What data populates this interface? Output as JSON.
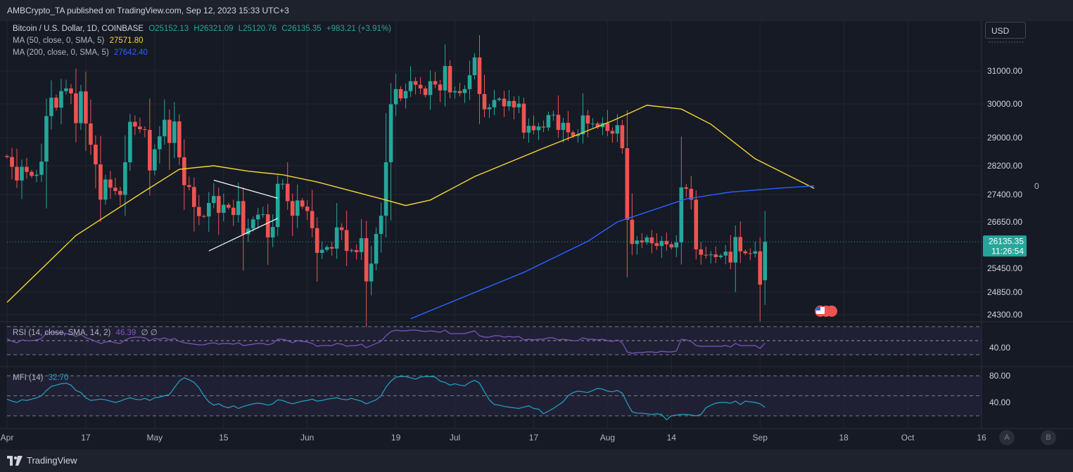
{
  "header": {
    "published": "AMBCrypto_TA published on TradingView.com, Sep 12, 2023 15:33 UTC+3"
  },
  "legend": {
    "symbol": "Bitcoin / U.S. Dollar, 1D, COINBASE",
    "o": "O25152.13",
    "h": "H26321.09",
    "l": "L25120.76",
    "c": "C26135.35",
    "chg": "+983.21 (+3.91%)",
    "ma50_label": "MA (50, close, 0, SMA, 5)",
    "ma50_value": "27571.80",
    "ma200_label": "MA (200, close, 0, SMA, 5)",
    "ma200_value": "27642.40",
    "rsi_label": "RSI (14, close, SMA, 14, 2)",
    "rsi_value": "46.39",
    "rsi_extra": "∅ ∅",
    "mfi_label": "MFI (14)",
    "mfi_value": "32.70"
  },
  "currency_button": "USD",
  "zero_label": "0",
  "last_price": {
    "value": "26135.35",
    "countdown": "11:26:54"
  },
  "footer": {
    "brand": "TradingView",
    "btn_a": "A",
    "btn_b": "B"
  },
  "colors": {
    "bg": "#161a25",
    "up": "#26a69a",
    "down": "#ef5350",
    "ma50": "#f7d531",
    "ma200": "#2962ff",
    "rsi": "#7e57c2",
    "mfi": "#22a3c3"
  },
  "chart_data": [
    {
      "type": "candlestick",
      "title": "Bitcoin / U.S. Dollar, 1D, COINBASE",
      "y_ticks": [
        "24300.00",
        "24850.00",
        "25450.00",
        "26650.00",
        "27400.00",
        "28200.00",
        "29000.00",
        "30000.00",
        "31000.00"
      ],
      "x_ticks": [
        "Apr",
        "17",
        "May",
        "15",
        "Jun",
        "19",
        "Jul",
        "17",
        "Aug",
        "14",
        "Sep",
        "18",
        "Oct",
        "16"
      ],
      "ylim": [
        23800,
        32200
      ],
      "xlim_dates": [
        "2023-04-01",
        "2023-10-16"
      ],
      "candles": {
        "start_date": "2023-04-01",
        "closes": [
          28450,
          28170,
          27790,
          28170,
          28030,
          27920,
          27950,
          28320,
          29640,
          30190,
          29890,
          30390,
          30470,
          30320,
          29430,
          30380,
          29420,
          28800,
          28240,
          27260,
          27820,
          27590,
          27500,
          27390,
          28300,
          29470,
          29330,
          29250,
          29230,
          28070,
          28670,
          29040,
          29530,
          28850,
          29480,
          28440,
          27660,
          27610,
          27060,
          26810,
          26800,
          27170,
          27360,
          26900,
          27120,
          27040,
          26840,
          27220,
          26330,
          26480,
          26720,
          26850,
          26860,
          26250,
          26520,
          27700,
          27700,
          27220,
          26820,
          27240,
          27070,
          26950,
          26490,
          25850,
          25930,
          26000,
          25960,
          26510,
          26440,
          25900,
          25920,
          25870,
          26230,
          25120,
          25570,
          26340,
          26820,
          28300,
          29990,
          30450,
          30170,
          30390,
          30690,
          30580,
          30470,
          30270,
          30690,
          30590,
          30410,
          31150,
          30350,
          30390,
          30330,
          30450,
          30870,
          31410,
          30300,
          29840,
          29900,
          30120,
          30160,
          29930,
          30090,
          29900,
          30010,
          29150,
          29350,
          29220,
          29330,
          29300,
          29670,
          29680,
          29230,
          29440,
          29160,
          29050,
          29100,
          29660,
          29420,
          29420,
          29310,
          29430,
          29200,
          29120,
          29370,
          28700,
          26710,
          26080,
          26170,
          26120,
          26250,
          26100,
          26030,
          26160,
          26070,
          25990,
          26120,
          27600,
          27560,
          27260,
          25940,
          25800,
          25790,
          25810,
          25740,
          25780,
          25880,
          25600,
          26260,
          25890,
          25840,
          25830,
          25890,
          25040,
          26135
        ],
        "opens": [
          28480,
          28450,
          28170,
          27790,
          28170,
          28030,
          27920,
          27950,
          28320,
          29640,
          30190,
          29890,
          30390,
          30470,
          30320,
          29430,
          30380,
          29420,
          28800,
          28240,
          27260,
          27820,
          27590,
          27500,
          27390,
          28300,
          29470,
          29330,
          29250,
          29230,
          28070,
          28670,
          29040,
          29530,
          28850,
          29480,
          28440,
          27660,
          27610,
          27060,
          26810,
          26800,
          27170,
          27360,
          26900,
          27120,
          27040,
          26840,
          27220,
          26330,
          26480,
          26720,
          26850,
          26860,
          26250,
          26520,
          27700,
          27700,
          27220,
          26820,
          27240,
          27070,
          26950,
          26490,
          25850,
          25930,
          26000,
          25960,
          26510,
          26440,
          25900,
          25920,
          25870,
          26230,
          25120,
          25570,
          26340,
          26820,
          28300,
          29990,
          30450,
          30170,
          30390,
          30690,
          30580,
          30470,
          30270,
          30690,
          30590,
          30410,
          31150,
          30350,
          30390,
          30330,
          30450,
          30870,
          31410,
          30300,
          29840,
          29900,
          30120,
          30160,
          29930,
          30090,
          29900,
          30010,
          29150,
          29350,
          29220,
          29330,
          29300,
          29670,
          29680,
          29230,
          29440,
          29160,
          29050,
          29100,
          29660,
          29420,
          29420,
          29310,
          29430,
          29200,
          29120,
          29370,
          28700,
          26710,
          26080,
          26170,
          26120,
          26250,
          26100,
          26030,
          26160,
          26070,
          25990,
          26120,
          27600,
          27560,
          27260,
          25940,
          25800,
          25790,
          25810,
          25740,
          25780,
          25880,
          25600,
          26260,
          25890,
          25840,
          25830,
          25890,
          25152
        ]
      },
      "ma50_points": [
        [
          "2023-04-01",
          24600
        ],
        [
          "2023-04-15",
          26300
        ],
        [
          "2023-04-29",
          27500
        ],
        [
          "2023-05-06",
          28100
        ],
        [
          "2023-05-13",
          28200
        ],
        [
          "2023-05-20",
          28050
        ],
        [
          "2023-05-27",
          27950
        ],
        [
          "2023-06-03",
          27750
        ],
        [
          "2023-06-17",
          27250
        ],
        [
          "2023-06-21",
          27100
        ],
        [
          "2023-06-26",
          27250
        ],
        [
          "2023-07-05",
          27900
        ],
        [
          "2023-07-19",
          28700
        ],
        [
          "2023-08-02",
          29500
        ],
        [
          "2023-08-09",
          29960
        ],
        [
          "2023-08-16",
          29850
        ],
        [
          "2023-08-22",
          29400
        ],
        [
          "2023-08-31",
          28400
        ],
        [
          "2023-09-12",
          27571.8
        ]
      ],
      "ma200_points": [
        [
          "2023-06-22",
          24200
        ],
        [
          "2023-07-15",
          25350
        ],
        [
          "2023-07-28",
          26150
        ],
        [
          "2023-08-03",
          26650
        ],
        [
          "2023-08-17",
          27280
        ],
        [
          "2023-08-26",
          27470
        ],
        [
          "2023-09-05",
          27580
        ],
        [
          "2023-09-12",
          27642.4
        ]
      ],
      "trendlines": [
        {
          "from": [
            "2023-05-12",
            25900
          ],
          "to": [
            "2023-05-26",
            26750
          ]
        },
        {
          "from": [
            "2023-05-13",
            27800
          ],
          "to": [
            "2023-05-26",
            27300
          ]
        }
      ]
    },
    {
      "type": "line",
      "title": "RSI (14, close, SMA, 14, 2)",
      "y_ticks": [
        "40.00"
      ],
      "bands": [
        30,
        50,
        70
      ],
      "last_value": 46.39,
      "values": [
        53,
        49,
        47,
        51,
        50,
        50,
        51,
        53,
        61,
        62,
        61,
        61,
        60,
        59,
        56,
        59,
        54,
        52,
        49,
        46,
        48,
        49,
        47,
        46,
        51,
        54,
        55,
        55,
        54,
        50,
        53,
        52,
        54,
        51,
        53,
        49,
        47,
        46,
        45,
        44,
        44,
        46,
        47,
        45,
        46,
        46,
        45,
        47,
        43,
        44,
        45,
        46,
        46,
        44,
        46,
        52,
        52,
        50,
        47,
        50,
        49,
        48,
        46,
        42,
        43,
        43,
        43,
        46,
        45,
        42,
        43,
        43,
        45,
        40,
        43,
        46,
        49,
        57,
        63,
        65,
        64,
        64,
        65,
        65,
        64,
        63,
        64,
        63,
        62,
        65,
        60,
        60,
        60,
        60,
        62,
        64,
        57,
        55,
        55,
        57,
        57,
        55,
        56,
        55,
        56,
        51,
        52,
        51,
        52,
        52,
        54,
        54,
        51,
        52,
        51,
        50,
        50,
        54,
        52,
        52,
        51,
        52,
        50,
        49,
        51,
        47,
        34,
        32,
        33,
        33,
        34,
        34,
        33,
        35,
        34,
        34,
        35,
        52,
        51,
        49,
        43,
        42,
        42,
        42,
        42,
        42,
        43,
        41,
        46,
        43,
        43,
        43,
        43,
        39,
        46.39
      ]
    },
    {
      "type": "line",
      "title": "MFI (14)",
      "y_ticks": [
        "80.00",
        "40.00"
      ],
      "bands": [
        20,
        50,
        80
      ],
      "last_value": 32.7,
      "values": [
        45,
        42,
        40,
        44,
        43,
        45,
        47,
        50,
        58,
        64,
        66,
        68,
        69,
        66,
        58,
        55,
        47,
        43,
        44,
        45,
        44,
        42,
        40,
        42,
        45,
        47,
        45,
        44,
        46,
        43,
        47,
        48,
        50,
        52,
        62,
        72,
        77,
        74,
        70,
        62,
        50,
        41,
        36,
        38,
        34,
        32,
        35,
        31,
        34,
        36,
        38,
        39,
        38,
        36,
        38,
        44,
        43,
        40,
        38,
        40,
        42,
        43,
        45,
        42,
        43,
        45,
        46,
        47,
        45,
        44,
        46,
        44,
        42,
        38,
        41,
        44,
        50,
        63,
        72,
        78,
        79,
        79,
        77,
        75,
        78,
        79,
        79,
        78,
        72,
        70,
        66,
        68,
        66,
        65,
        70,
        73,
        69,
        56,
        44,
        37,
        36,
        34,
        33,
        32,
        31,
        33,
        35,
        31,
        30,
        23,
        27,
        31,
        36,
        41,
        50,
        55,
        57,
        56,
        55,
        58,
        61,
        60,
        57,
        56,
        58,
        54,
        39,
        26,
        24,
        24,
        23,
        22,
        23,
        22,
        14,
        20,
        21,
        22,
        22,
        21,
        20,
        22,
        32,
        36,
        39,
        40,
        40,
        39,
        42,
        37,
        42,
        41,
        40,
        38,
        32.7
      ]
    }
  ]
}
